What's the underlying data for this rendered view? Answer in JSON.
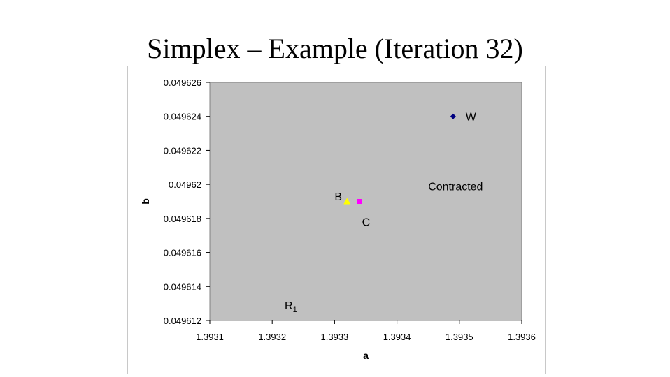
{
  "slide": {
    "title": "Simplex – Example (Iteration 32)"
  },
  "chart_data": {
    "type": "scatter",
    "title": "",
    "xlabel": "a",
    "ylabel": "b",
    "xlim": [
      1.3931,
      1.3936
    ],
    "ylim": [
      0.049612,
      0.049626
    ],
    "x_ticks": [
      1.3931,
      1.3932,
      1.3933,
      1.3934,
      1.3935,
      1.3936
    ],
    "x_tick_labels": [
      "1.3931",
      "1.3932",
      "1.3933",
      "1.3934",
      "1.3935",
      "1.3936"
    ],
    "y_ticks": [
      0.049612,
      0.049614,
      0.049616,
      0.049618,
      0.04962,
      0.049622,
      0.049624,
      0.049626
    ],
    "y_tick_labels": [
      "0.049612",
      "0.049614",
      "0.049616",
      "0.049618",
      "0.04962",
      "0.049622",
      "0.049624",
      "0.049626"
    ],
    "grid": false,
    "plot_background": "#c0c0c0",
    "points": [
      {
        "label": "W",
        "x": 1.39349,
        "y": 0.049624,
        "marker": "diamond",
        "color": "#000080"
      },
      {
        "label": "B",
        "x": 1.39332,
        "y": 0.049619,
        "marker": "triangle",
        "color": "#ffff00"
      },
      {
        "label": "C",
        "x": 1.39334,
        "y": 0.049619,
        "marker": "square",
        "color": "#ff00ff"
      }
    ],
    "annotations": [
      {
        "text": "W",
        "x": 1.39351,
        "y": 0.049624
      },
      {
        "text": "B",
        "x": 1.3933,
        "y": 0.0496193
      },
      {
        "text": "C",
        "x": 1.393344,
        "y": 0.0496178
      },
      {
        "text": "Contracted",
        "x": 1.39345,
        "y": 0.0496199
      },
      {
        "text": "R",
        "subscript": "1",
        "x": 1.39322,
        "y": 0.0496129
      }
    ]
  }
}
